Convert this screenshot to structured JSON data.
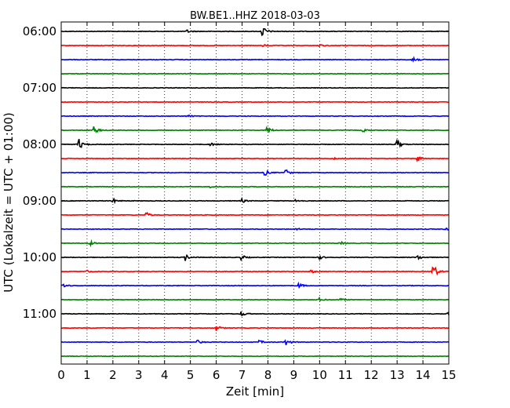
{
  "chart_data": {
    "type": "line",
    "title": "BW.BE1..HHZ 2018-03-03",
    "xlabel": "Zeit  [min]",
    "ylabel": "UTC (Lokalzeit = UTC + 01:00)",
    "xlim": [
      0,
      15
    ],
    "x_ticks": [
      "0",
      "1",
      "2",
      "3",
      "4",
      "5",
      "6",
      "7",
      "8",
      "9",
      "10",
      "11",
      "12",
      "13",
      "14",
      "15"
    ],
    "y_ticks": [
      {
        "label": "06:00",
        "minutes_after_start": 0
      },
      {
        "label": "07:00",
        "minutes_after_start": 60
      },
      {
        "label": "08:00",
        "minutes_after_start": 120
      },
      {
        "label": "09:00",
        "minutes_after_start": 180
      },
      {
        "label": "10:00",
        "minutes_after_start": 240
      },
      {
        "label": "11:00",
        "minutes_after_start": 300
      }
    ],
    "line_interval_minutes": 15,
    "grid": "vertical dotted lines every 1 minute",
    "colors": [
      "#000000",
      "#ff0000",
      "#0000ff",
      "#008000"
    ],
    "traces": [
      {
        "start": "06:00",
        "events": [
          {
            "t": 4.9,
            "amp": 0.25
          },
          {
            "t": 7.8,
            "amp": 1.0
          }
        ]
      },
      {
        "start": "06:15",
        "events": [
          {
            "t": 7.8,
            "amp": 0.2
          },
          {
            "t": 10.0,
            "amp": 0.18
          }
        ]
      },
      {
        "start": "06:30",
        "events": [
          {
            "t": 13.6,
            "amp": 0.9
          }
        ]
      },
      {
        "start": "06:45",
        "events": []
      },
      {
        "start": "07:00",
        "events": []
      },
      {
        "start": "07:15",
        "events": []
      },
      {
        "start": "07:30",
        "events": [
          {
            "t": 4.9,
            "amp": 0.3
          }
        ]
      },
      {
        "start": "07:45",
        "events": [
          {
            "t": 1.3,
            "amp": 0.7
          },
          {
            "t": 8.0,
            "amp": 0.6
          },
          {
            "t": 11.7,
            "amp": 0.25
          }
        ]
      },
      {
        "start": "08:00",
        "events": [
          {
            "t": 0.7,
            "amp": 1.0
          },
          {
            "t": 5.8,
            "amp": 0.3
          },
          {
            "t": 13.0,
            "amp": 0.8
          }
        ]
      },
      {
        "start": "08:15",
        "events": [
          {
            "t": 10.5,
            "amp": 0.2
          },
          {
            "t": 13.8,
            "amp": 0.5
          }
        ]
      },
      {
        "start": "08:30",
        "events": [
          {
            "t": 7.9,
            "amp": 0.5
          },
          {
            "t": 8.7,
            "amp": 0.55
          }
        ]
      },
      {
        "start": "08:45",
        "events": [
          {
            "t": 5.8,
            "amp": 0.15
          }
        ]
      },
      {
        "start": "09:00",
        "events": [
          {
            "t": 2.0,
            "amp": 0.4
          },
          {
            "t": 7.0,
            "amp": 0.35
          },
          {
            "t": 9.1,
            "amp": 0.3
          }
        ]
      },
      {
        "start": "09:15",
        "events": [
          {
            "t": 3.3,
            "amp": 0.45
          }
        ]
      },
      {
        "start": "09:30",
        "events": [
          {
            "t": 9.1,
            "amp": 0.2
          },
          {
            "t": 14.9,
            "amp": 0.4
          }
        ]
      },
      {
        "start": "09:45",
        "events": [
          {
            "t": 1.1,
            "amp": 0.45
          },
          {
            "t": 10.8,
            "amp": 0.3
          }
        ]
      },
      {
        "start": "10:00",
        "events": [
          {
            "t": 4.8,
            "amp": 0.6
          },
          {
            "t": 7.0,
            "amp": 0.4
          },
          {
            "t": 10.0,
            "amp": 0.3
          },
          {
            "t": 13.8,
            "amp": 0.45
          }
        ]
      },
      {
        "start": "10:15",
        "events": [
          {
            "t": 1.0,
            "amp": 0.2
          },
          {
            "t": 9.7,
            "amp": 0.3
          },
          {
            "t": 14.4,
            "amp": 1.5
          }
        ]
      },
      {
        "start": "10:30",
        "events": [
          {
            "t": 0.1,
            "amp": 0.35
          },
          {
            "t": 9.2,
            "amp": 0.45
          }
        ]
      },
      {
        "start": "10:45",
        "events": [
          {
            "t": 10.0,
            "amp": 0.3
          },
          {
            "t": 10.8,
            "amp": 0.25
          }
        ]
      },
      {
        "start": "11:00",
        "events": [
          {
            "t": 7.0,
            "amp": 0.45
          },
          {
            "t": 15.0,
            "amp": 0.8
          }
        ]
      },
      {
        "start": "11:15",
        "events": [
          {
            "t": 6.0,
            "amp": 0.55
          }
        ]
      },
      {
        "start": "11:30",
        "events": [
          {
            "t": 5.3,
            "amp": 0.3
          },
          {
            "t": 7.7,
            "amp": 0.25
          },
          {
            "t": 8.7,
            "amp": 0.65
          }
        ]
      },
      {
        "start": "11:45",
        "events": []
      }
    ]
  }
}
